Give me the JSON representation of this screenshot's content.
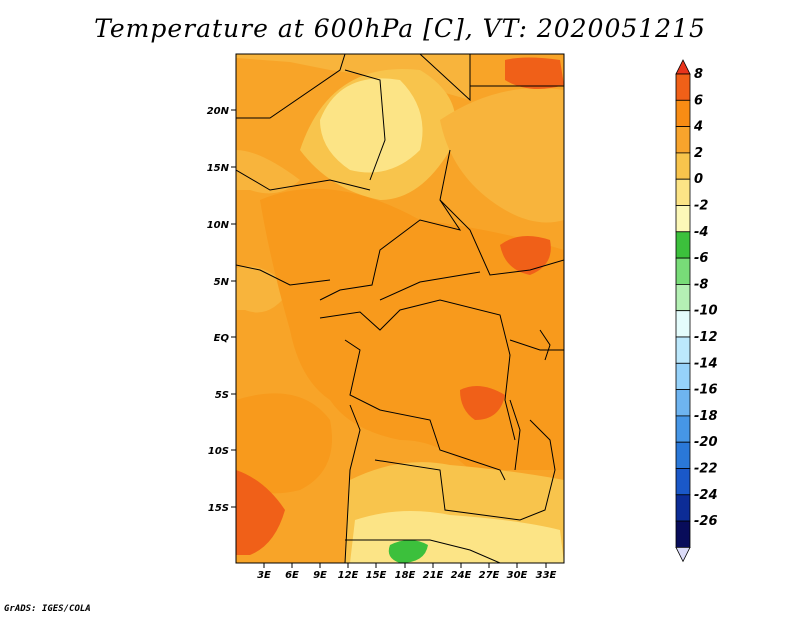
{
  "title": "Temperature at 600hPa [C], VT: 2020051215",
  "credit": "GrADS: IGES/COLA",
  "map": {
    "lat_ticks": [
      "20N",
      "15N",
      "10N",
      "5N",
      "EQ",
      "5S",
      "10S",
      "15S"
    ],
    "lon_ticks": [
      "3E",
      "6E",
      "9E",
      "12E",
      "15E",
      "18E",
      "21E",
      "24E",
      "27E",
      "30E",
      "33E"
    ]
  },
  "colorbar": {
    "levels": [
      "8",
      "6",
      "4",
      "2",
      "0",
      "-2",
      "-4",
      "-6",
      "-8",
      "-10",
      "-12",
      "-14",
      "-16",
      "-18",
      "-20",
      "-22",
      "-24",
      "-26"
    ],
    "colors": [
      "#e8341c",
      "#f06018",
      "#f88c14",
      "#f8a42c",
      "#f8c44c",
      "#fce486",
      "#fcf8b8",
      "#3cc03c",
      "#78dc78",
      "#b4f0b4",
      "#e4fcfc",
      "#bce8fc",
      "#96d2fa",
      "#6eb4f0",
      "#4696e6",
      "#2a78d8",
      "#1a58c8",
      "#0c2c96",
      "#080c5a",
      "#dcdcf8"
    ]
  }
}
